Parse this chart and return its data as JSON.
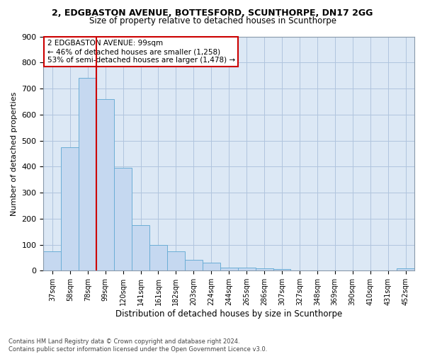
{
  "title": "2, EDGBASTON AVENUE, BOTTESFORD, SCUNTHORPE, DN17 2GG",
  "subtitle": "Size of property relative to detached houses in Scunthorpe",
  "xlabel": "Distribution of detached houses by size in Scunthorpe",
  "ylabel": "Number of detached properties",
  "categories": [
    "37sqm",
    "58sqm",
    "78sqm",
    "99sqm",
    "120sqm",
    "141sqm",
    "161sqm",
    "182sqm",
    "203sqm",
    "224sqm",
    "244sqm",
    "265sqm",
    "286sqm",
    "307sqm",
    "327sqm",
    "348sqm",
    "369sqm",
    "390sqm",
    "410sqm",
    "431sqm",
    "452sqm"
  ],
  "values": [
    75,
    475,
    740,
    660,
    395,
    175,
    100,
    75,
    42,
    30,
    13,
    12,
    10,
    7,
    0,
    0,
    0,
    0,
    0,
    0,
    8
  ],
  "bar_color": "#c5d8f0",
  "bar_edge_color": "#6baed6",
  "vline_index": 2.5,
  "annotation_line1": "2 EDGBASTON AVENUE: 99sqm",
  "annotation_line2": "← 46% of detached houses are smaller (1,258)",
  "annotation_line3": "53% of semi-detached houses are larger (1,478) →",
  "vline_color": "#cc0000",
  "annotation_box_edgecolor": "#cc0000",
  "grid_color": "#b0c4de",
  "bg_color": "#dce8f5",
  "footer1": "Contains HM Land Registry data © Crown copyright and database right 2024.",
  "footer2": "Contains public sector information licensed under the Open Government Licence v3.0.",
  "ylim": [
    0,
    900
  ],
  "yticks": [
    0,
    100,
    200,
    300,
    400,
    500,
    600,
    700,
    800,
    900
  ]
}
